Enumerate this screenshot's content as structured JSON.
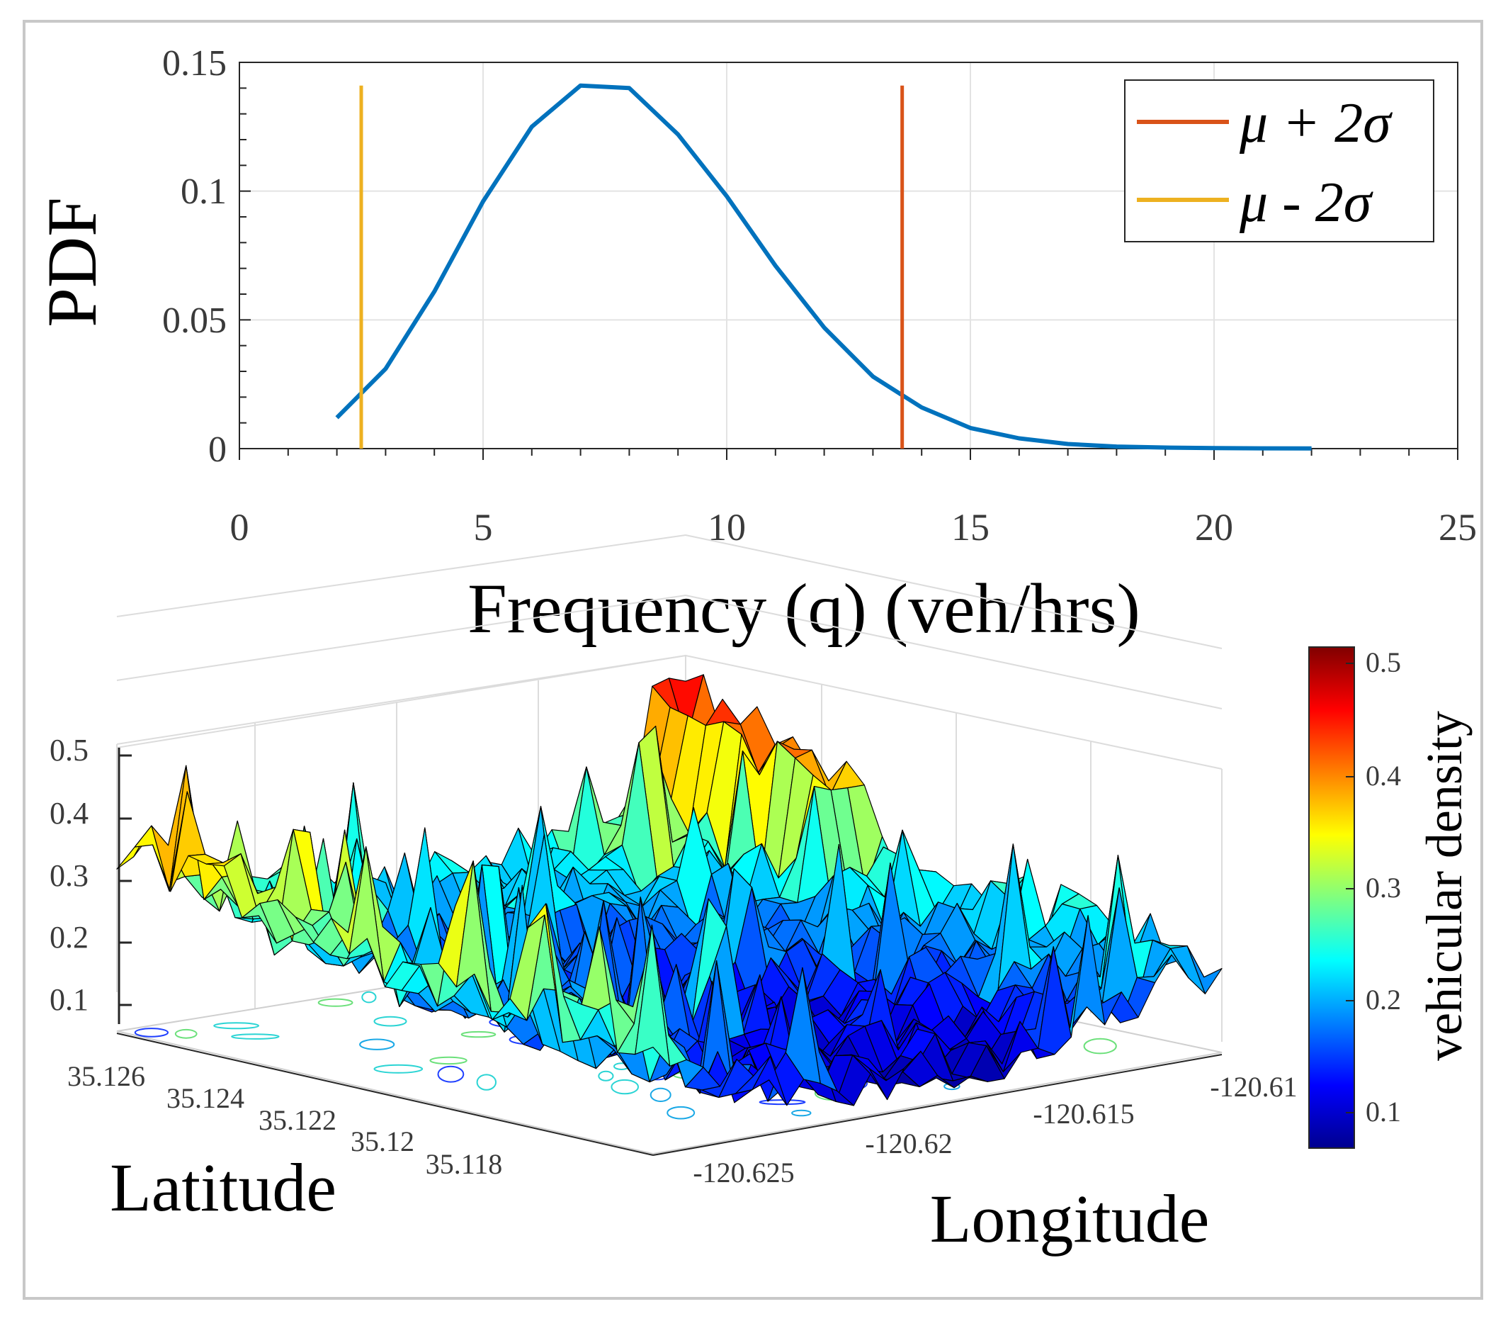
{
  "chart_data": [
    {
      "type": "line",
      "xlabel": "Frequency (q) (veh/hrs)",
      "ylabel": "PDF",
      "xlim": [
        0,
        25
      ],
      "ylim": [
        0,
        0.15
      ],
      "xticks": [
        "0",
        "5",
        "10",
        "15",
        "20",
        "25"
      ],
      "yticks": [
        "0",
        "0.05",
        "0.1",
        "0.15"
      ],
      "grid": true,
      "legend_position": "top-right",
      "series": [
        {
          "name": "PDF",
          "color": "#0072bd",
          "x": [
            2,
            3,
            4,
            5,
            6,
            7,
            8,
            9,
            10,
            11,
            12,
            13,
            14,
            15,
            16,
            17,
            18,
            19,
            20,
            21,
            22
          ],
          "y": [
            0.012,
            0.031,
            0.061,
            0.096,
            0.125,
            0.141,
            0.14,
            0.122,
            0.098,
            0.071,
            0.047,
            0.028,
            0.016,
            0.008,
            0.004,
            0.0018,
            0.0008,
            0.0004,
            0.0002,
            0.0001,
            5e-05
          ]
        }
      ],
      "vlines": [
        {
          "label": "μ + 2σ",
          "x": 13.6,
          "color": "#d95319",
          "ymax": 0.141
        },
        {
          "label": "μ - 2σ",
          "x": 2.5,
          "color": "#edb120",
          "ymax": 0.141
        }
      ]
    },
    {
      "type": "surface",
      "xlabel": "Longitude",
      "ylabel": "Latitude",
      "zticks": [
        "0.1",
        "0.2",
        "0.3",
        "0.4",
        "0.5"
      ],
      "longitude_ticks": [
        "-120.625",
        "-120.62",
        "-120.615",
        "-120.61"
      ],
      "latitude_ticks": [
        "35.126",
        "35.124",
        "35.122",
        "35.12",
        "35.118"
      ],
      "colorbar": {
        "label": "vehicular density",
        "ticks": [
          "0.1",
          "0.2",
          "0.3",
          "0.4",
          "0.5"
        ],
        "range": [
          0.06,
          0.51
        ]
      }
    }
  ]
}
